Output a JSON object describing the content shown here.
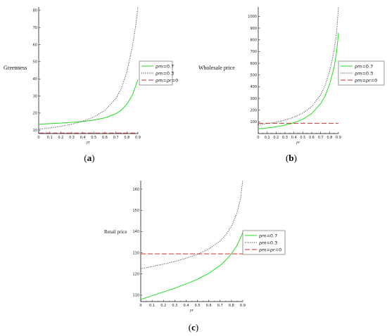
{
  "colors": {
    "rho_m_07": "#22dd22",
    "rho_m_03": "#222222",
    "rho_zero": "#cc3333"
  },
  "chart_data": [
    {
      "id": "a",
      "type": "line",
      "panel_label": {
        "open": "(",
        "letter": "a",
        "close": ")"
      },
      "ylabel": "Greenness",
      "xlabel": "ρr",
      "xlim": [
        0,
        0.9
      ],
      "ylim": [
        8,
        82
      ],
      "x_ticks": [
        0,
        0.1,
        0.2,
        0.3,
        0.4,
        0.5,
        0.6,
        0.7,
        0.8,
        0.9
      ],
      "x_tick_labels": [
        "0",
        "0.1",
        "0.2",
        "0.3",
        "0.4",
        "0.5",
        "0.6",
        "0.7",
        "0.8",
        "0.9"
      ],
      "y_ticks": [
        10,
        20,
        30,
        40,
        50,
        60,
        70,
        80
      ],
      "y_tick_labels": [
        "10",
        "20",
        "30",
        "40",
        "50",
        "60",
        "70",
        "80"
      ],
      "legend_position": "right",
      "series": [
        {
          "name": "ρm=0.7",
          "style": "solid",
          "color": "#22dd22",
          "x": [
            0,
            0.1,
            0.2,
            0.3,
            0.4,
            0.5,
            0.6,
            0.7,
            0.75,
            0.8,
            0.85,
            0.9
          ],
          "y": [
            13.5,
            13.8,
            14.1,
            14.6,
            15.1,
            15.9,
            17.2,
            19.6,
            21.8,
            25.2,
            30.5,
            39.5
          ]
        },
        {
          "name": "ρm=0.3",
          "style": "dotted",
          "color": "#222222",
          "x": [
            0,
            0.1,
            0.2,
            0.3,
            0.4,
            0.5,
            0.6,
            0.7,
            0.75,
            0.8,
            0.85,
            0.88,
            0.9
          ],
          "y": [
            10.5,
            11.3,
            12.2,
            13.5,
            15.2,
            17.7,
            21.5,
            28.5,
            34.5,
            44.0,
            59.0,
            71.0,
            82.0
          ]
        },
        {
          "name": "ρm=ρr=0",
          "style": "dashed",
          "color": "#cc3333",
          "x": [
            0,
            0.9
          ],
          "y": [
            8.3,
            8.3
          ]
        }
      ]
    },
    {
      "id": "b",
      "type": "line",
      "panel_label": {
        "open": "(",
        "letter": "b",
        "close": ")"
      },
      "ylabel": "Wholesale price",
      "xlabel": "ρr",
      "xlim": [
        0,
        0.9
      ],
      "ylim": [
        0,
        1080
      ],
      "x_ticks": [
        0,
        0.1,
        0.2,
        0.3,
        0.4,
        0.5,
        0.6,
        0.7,
        0.8,
        0.9
      ],
      "x_tick_labels": [
        "0",
        "0.1",
        "0.2",
        "0.3",
        "0.4",
        "0.5",
        "0.6",
        "0.7",
        "0.8",
        "0.9"
      ],
      "y_ticks": [
        100,
        200,
        300,
        400,
        500,
        600,
        700,
        800,
        900,
        1000
      ],
      "y_tick_labels": [
        "100",
        "200",
        "300",
        "400",
        "500",
        "600",
        "700",
        "800",
        "900",
        "1000"
      ],
      "legend_position": "right",
      "series": [
        {
          "name": "ρm=0.7",
          "style": "solid",
          "color": "#22dd22",
          "x": [
            0,
            0.1,
            0.2,
            0.3,
            0.4,
            0.5,
            0.6,
            0.7,
            0.75,
            0.8,
            0.85,
            0.88,
            0.9
          ],
          "y": [
            40,
            48,
            58,
            72,
            92,
            122,
            170,
            255,
            320,
            420,
            560,
            700,
            860
          ]
        },
        {
          "name": "ρm=0.3",
          "style": "dotted",
          "color": "#222222",
          "x": [
            0,
            0.1,
            0.2,
            0.3,
            0.4,
            0.5,
            0.6,
            0.7,
            0.75,
            0.8,
            0.85,
            0.88,
            0.9
          ],
          "y": [
            75,
            85,
            98,
            115,
            140,
            175,
            230,
            330,
            410,
            530,
            700,
            870,
            1080
          ]
        },
        {
          "name": "ρm=ρr=0",
          "style": "dashed",
          "color": "#cc3333",
          "x": [
            0,
            0.9
          ],
          "y": [
            88,
            88
          ]
        }
      ]
    },
    {
      "id": "c",
      "type": "line",
      "panel_label": {
        "open": "(",
        "letter": "c",
        "close": ")"
      },
      "ylabel": "Retail price",
      "xlabel": "ρr",
      "xlim": [
        0,
        0.9
      ],
      "ylim": [
        107,
        164
      ],
      "x_ticks": [
        0,
        0.1,
        0.2,
        0.3,
        0.4,
        0.5,
        0.6,
        0.7,
        0.8,
        0.9
      ],
      "x_tick_labels": [
        "0",
        "0.1",
        "0.2",
        "0.3",
        "0.4",
        "0.5",
        "0.6",
        "0.7",
        "0.8",
        "0.9"
      ],
      "y_ticks": [
        110,
        120,
        130,
        140,
        150,
        160
      ],
      "y_tick_labels": [
        "110",
        "120",
        "130",
        "140",
        "150",
        "160"
      ],
      "legend_position": "right",
      "series": [
        {
          "name": "ρm=0.7",
          "style": "solid",
          "color": "#22dd22",
          "x": [
            0,
            0.1,
            0.2,
            0.3,
            0.4,
            0.5,
            0.6,
            0.7,
            0.75,
            0.8,
            0.85,
            0.9
          ],
          "y": [
            108.0,
            109.8,
            111.5,
            113.3,
            115.3,
            117.5,
            120.3,
            124.0,
            126.5,
            129.5,
            133.5,
            139.5
          ]
        },
        {
          "name": "ρm=0.3",
          "style": "dotted",
          "color": "#222222",
          "x": [
            0,
            0.1,
            0.2,
            0.3,
            0.4,
            0.5,
            0.6,
            0.7,
            0.75,
            0.8,
            0.85,
            0.88,
            0.9
          ],
          "y": [
            122.5,
            123.5,
            124.6,
            125.9,
            127.4,
            129.3,
            131.8,
            135.5,
            138.3,
            142.5,
            149.0,
            155.5,
            164.0
          ]
        },
        {
          "name": "ρm=ρr=0",
          "style": "dashed",
          "color": "#cc3333",
          "x": [
            0,
            0.9
          ],
          "y": [
            129.5,
            129.5
          ]
        }
      ]
    }
  ]
}
